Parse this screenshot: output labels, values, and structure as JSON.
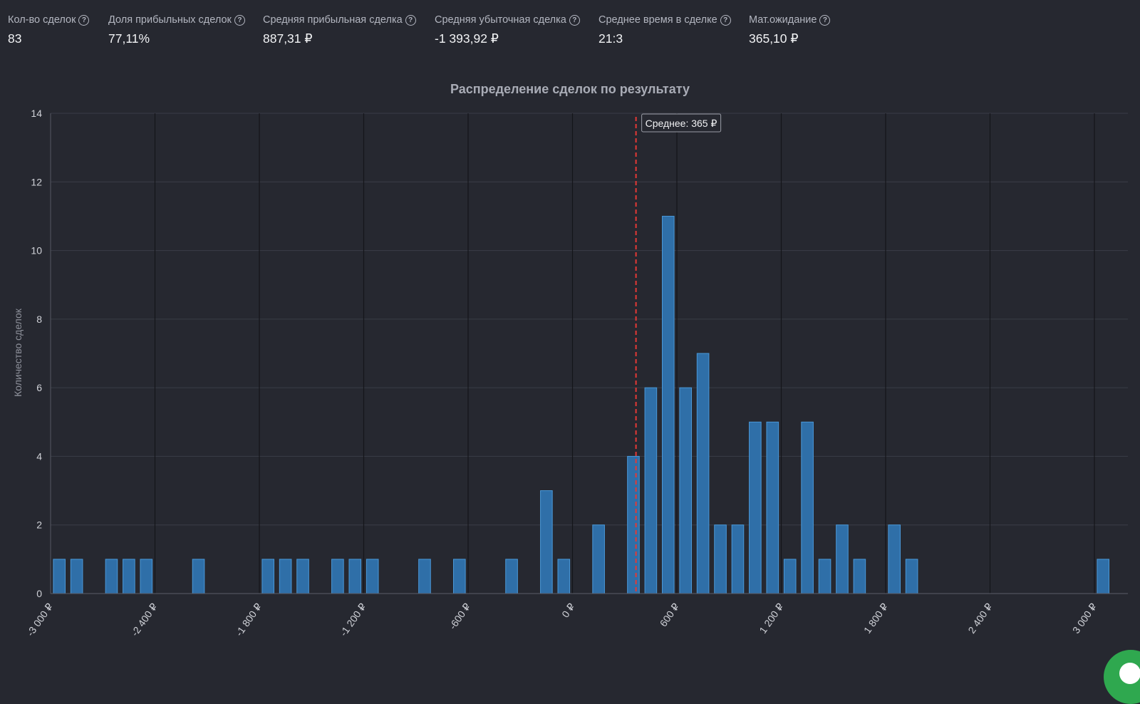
{
  "stats": [
    {
      "label": "Кол-во сделок",
      "value": "83"
    },
    {
      "label": "Доля прибыльных сделок",
      "value": "77,11%"
    },
    {
      "label": "Средняя прибыльная сделка",
      "value": "887,31 ₽"
    },
    {
      "label": "Средняя убыточная сделка",
      "value": "-1 393,92 ₽"
    },
    {
      "label": "Среднее время в сделке",
      "value": "21:3"
    },
    {
      "label": "Мат.ожидание",
      "value": "365,10 ₽"
    }
  ],
  "help_icon": "question-circle-icon",
  "chart_data": {
    "type": "bar",
    "title": "Распределение сделок по результату",
    "ylabel": "Количество сделок",
    "xlabel": "",
    "xlim": [
      -3000,
      3000
    ],
    "ylim": [
      0,
      14
    ],
    "yticks": [
      0,
      2,
      4,
      6,
      8,
      10,
      12,
      14
    ],
    "xticks": [
      {
        "value": -3000,
        "label": "-3 000 ₽"
      },
      {
        "value": -2400,
        "label": "-2 400 ₽"
      },
      {
        "value": -1800,
        "label": "-1 800 ₽"
      },
      {
        "value": -1200,
        "label": "-1 200 ₽"
      },
      {
        "value": -600,
        "label": "-600 ₽"
      },
      {
        "value": 0,
        "label": "0 ₽"
      },
      {
        "value": 600,
        "label": "600 ₽"
      },
      {
        "value": 1200,
        "label": "1 200 ₽"
      },
      {
        "value": 1800,
        "label": "1 800 ₽"
      },
      {
        "value": 2400,
        "label": "2 400 ₽"
      },
      {
        "value": 3000,
        "label": "3 000 ₽"
      }
    ],
    "bin_width": 100,
    "bins": [
      {
        "x": -2950,
        "y": 1
      },
      {
        "x": -2850,
        "y": 1
      },
      {
        "x": -2650,
        "y": 1
      },
      {
        "x": -2550,
        "y": 1
      },
      {
        "x": -2450,
        "y": 1
      },
      {
        "x": -2150,
        "y": 1
      },
      {
        "x": -1750,
        "y": 1
      },
      {
        "x": -1650,
        "y": 1
      },
      {
        "x": -1550,
        "y": 1
      },
      {
        "x": -1350,
        "y": 1
      },
      {
        "x": -1250,
        "y": 1
      },
      {
        "x": -1150,
        "y": 1
      },
      {
        "x": -850,
        "y": 1
      },
      {
        "x": -650,
        "y": 1
      },
      {
        "x": -350,
        "y": 1
      },
      {
        "x": -150,
        "y": 3
      },
      {
        "x": -50,
        "y": 1
      },
      {
        "x": 150,
        "y": 2
      },
      {
        "x": 350,
        "y": 4
      },
      {
        "x": 450,
        "y": 6
      },
      {
        "x": 550,
        "y": 11
      },
      {
        "x": 650,
        "y": 6
      },
      {
        "x": 750,
        "y": 7
      },
      {
        "x": 850,
        "y": 2
      },
      {
        "x": 950,
        "y": 2
      },
      {
        "x": 1050,
        "y": 5
      },
      {
        "x": 1150,
        "y": 5
      },
      {
        "x": 1250,
        "y": 1
      },
      {
        "x": 1350,
        "y": 5
      },
      {
        "x": 1450,
        "y": 1
      },
      {
        "x": 1550,
        "y": 2
      },
      {
        "x": 1650,
        "y": 1
      },
      {
        "x": 1850,
        "y": 2
      },
      {
        "x": 1950,
        "y": 1
      },
      {
        "x": 3050,
        "y": 1
      }
    ],
    "mean_line": {
      "value": 365,
      "label": "Среднее: 365 ₽",
      "color": "#e53935"
    },
    "bar_color": "#2f6fa8",
    "bar_border": "#4a98d8",
    "grid": true,
    "legend": "none"
  }
}
